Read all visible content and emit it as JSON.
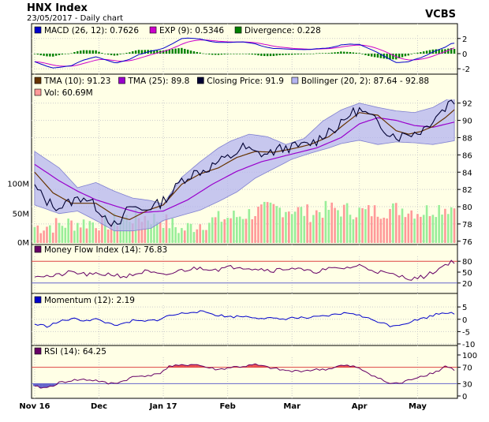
{
  "header": {
    "title": "HNX Index",
    "subtitle": "23/05/2017 - Daily chart",
    "source": "VCBS"
  },
  "colors": {
    "panel_bg": "#ffffe6",
    "macd": "#0000cc",
    "exp": "#cc00cc",
    "divergence": "#008000",
    "tma10": "#663300",
    "tma25": "#9900cc",
    "close": "#000033",
    "bollinger_fill": "#b4b4f0",
    "vol_up": "#99ee99",
    "vol_down": "#ff9999",
    "mfi_line": "#660066",
    "momentum_line": "#0000cc",
    "rsi_line": "#660066",
    "rsi_over": "#ee5555",
    "rsi_under": "#6666cc",
    "ref_line": "#dd4444"
  },
  "legends": {
    "macd": [
      {
        "swatch": "#0000cc",
        "text": "MACD (26, 12): 0.7626"
      },
      {
        "swatch": "#cc00cc",
        "text": "EXP (9): 0.5346"
      },
      {
        "swatch": "#008000",
        "text": "Divergence: 0.228"
      }
    ],
    "price": [
      {
        "swatch": "#663300",
        "text": "TMA (10): 91.23"
      },
      {
        "swatch": "#9900cc",
        "text": "TMA (25): 89.8"
      },
      {
        "swatch": "#000033",
        "text": "Closing Price: 91.9"
      },
      {
        "swatch": "#b4b4f0",
        "text": "Bollinger (20, 2): 87.64 - 92.88"
      },
      {
        "swatch": "#ff9999",
        "text": "Vol: 60.69M"
      }
    ],
    "mfi": [
      {
        "swatch": "#660066",
        "text": "Money Flow Index (14): 76.83"
      }
    ],
    "momentum": [
      {
        "swatch": "#0000cc",
        "text": "Momentum (12): 2.19"
      }
    ],
    "rsi": [
      {
        "swatch": "#660066",
        "text": "RSI (14): 64.25"
      }
    ]
  },
  "chart_data": {
    "type": "line",
    "x_labels": [
      "Nov 16",
      "Dec",
      "Jan 17",
      "Feb",
      "Mar",
      "Apr",
      "May"
    ],
    "x_label_day_index": [
      0,
      21,
      42,
      63,
      84,
      106,
      125
    ],
    "n_days": 138,
    "close_keypoints": [
      [
        0,
        82.3
      ],
      [
        4,
        80.6
      ],
      [
        8,
        79.9
      ],
      [
        12,
        80.6
      ],
      [
        16,
        81.2
      ],
      [
        20,
        80.0
      ],
      [
        24,
        78.6
      ],
      [
        27,
        77.5
      ],
      [
        31,
        80.1
      ],
      [
        35,
        79.6
      ],
      [
        38,
        80.0
      ],
      [
        41,
        80.4
      ],
      [
        45,
        81.7
      ],
      [
        48,
        83.1
      ],
      [
        52,
        83.9
      ],
      [
        56,
        84.3
      ],
      [
        60,
        85.2
      ],
      [
        64,
        85.8
      ],
      [
        68,
        86.9
      ],
      [
        72,
        86.2
      ],
      [
        76,
        86.1
      ],
      [
        80,
        86.7
      ],
      [
        84,
        86.9
      ],
      [
        88,
        87.1
      ],
      [
        92,
        87.6
      ],
      [
        96,
        88.9
      ],
      [
        99,
        89.1
      ],
      [
        103,
        90.8
      ],
      [
        106,
        91.2
      ],
      [
        110,
        90.3
      ],
      [
        113,
        89.4
      ],
      [
        116,
        88.5
      ],
      [
        119,
        88.1
      ],
      [
        122,
        88.5
      ],
      [
        125,
        88.6
      ],
      [
        128,
        89.3
      ],
      [
        131,
        90.6
      ],
      [
        134,
        91.4
      ],
      [
        136,
        92.6
      ],
      [
        137,
        91.9
      ]
    ],
    "tma10_keypoints": [
      [
        0,
        84.0
      ],
      [
        6,
        81.6
      ],
      [
        12,
        80.4
      ],
      [
        20,
        80.4
      ],
      [
        26,
        79.0
      ],
      [
        31,
        78.5
      ],
      [
        37,
        79.6
      ],
      [
        42,
        80.2
      ],
      [
        48,
        82.6
      ],
      [
        54,
        83.8
      ],
      [
        60,
        84.5
      ],
      [
        66,
        85.7
      ],
      [
        72,
        86.4
      ],
      [
        78,
        86.3
      ],
      [
        84,
        86.7
      ],
      [
        90,
        87.2
      ],
      [
        96,
        88.1
      ],
      [
        102,
        89.8
      ],
      [
        106,
        90.9
      ],
      [
        112,
        90.6
      ],
      [
        118,
        88.8
      ],
      [
        122,
        88.4
      ],
      [
        126,
        88.7
      ],
      [
        130,
        89.3
      ],
      [
        134,
        90.3
      ],
      [
        137,
        91.23
      ]
    ],
    "tma25_keypoints": [
      [
        0,
        84.9
      ],
      [
        8,
        83.0
      ],
      [
        14,
        81.8
      ],
      [
        20,
        80.8
      ],
      [
        28,
        79.9
      ],
      [
        34,
        79.3
      ],
      [
        42,
        79.5
      ],
      [
        50,
        80.8
      ],
      [
        58,
        82.6
      ],
      [
        66,
        84.1
      ],
      [
        74,
        85.2
      ],
      [
        84,
        86.1
      ],
      [
        92,
        86.8
      ],
      [
        100,
        88.0
      ],
      [
        106,
        89.6
      ],
      [
        112,
        90.3
      ],
      [
        118,
        90.0
      ],
      [
        124,
        89.4
      ],
      [
        130,
        89.2
      ],
      [
        137,
        89.8
      ]
    ],
    "bollinger_upper_keypoints": [
      [
        0,
        86.4
      ],
      [
        8,
        84.5
      ],
      [
        14,
        82.2
      ],
      [
        20,
        82.8
      ],
      [
        26,
        81.8
      ],
      [
        32,
        81.0
      ],
      [
        38,
        80.7
      ],
      [
        42,
        80.3
      ],
      [
        48,
        83.4
      ],
      [
        54,
        85.2
      ],
      [
        60,
        86.8
      ],
      [
        64,
        87.6
      ],
      [
        70,
        88.4
      ],
      [
        76,
        88.1
      ],
      [
        82,
        87.2
      ],
      [
        88,
        87.9
      ],
      [
        94,
        89.9
      ],
      [
        100,
        91.2
      ],
      [
        106,
        92.0
      ],
      [
        112,
        91.5
      ],
      [
        118,
        91.1
      ],
      [
        124,
        90.9
      ],
      [
        130,
        91.5
      ],
      [
        137,
        92.88
      ]
    ],
    "bollinger_lower_keypoints": [
      [
        0,
        80.2
      ],
      [
        8,
        79.2
      ],
      [
        14,
        79.5
      ],
      [
        20,
        78.4
      ],
      [
        26,
        77.2
      ],
      [
        32,
        77.2
      ],
      [
        38,
        77.5
      ],
      [
        42,
        78.4
      ],
      [
        48,
        79.0
      ],
      [
        54,
        79.6
      ],
      [
        60,
        80.6
      ],
      [
        66,
        81.7
      ],
      [
        72,
        83.3
      ],
      [
        78,
        84.4
      ],
      [
        84,
        85.5
      ],
      [
        90,
        86.2
      ],
      [
        96,
        86.8
      ],
      [
        100,
        87.3
      ],
      [
        106,
        87.7
      ],
      [
        112,
        87.2
      ],
      [
        118,
        87.5
      ],
      [
        124,
        87.4
      ],
      [
        130,
        87.2
      ],
      [
        137,
        87.64
      ]
    ],
    "volume_keypoints": [
      [
        0,
        27
      ],
      [
        6,
        30
      ],
      [
        12,
        33
      ],
      [
        18,
        35
      ],
      [
        24,
        34
      ],
      [
        30,
        42
      ],
      [
        36,
        44
      ],
      [
        42,
        38
      ],
      [
        48,
        22
      ],
      [
        54,
        33
      ],
      [
        60,
        40
      ],
      [
        66,
        45
      ],
      [
        72,
        52
      ],
      [
        78,
        58
      ],
      [
        84,
        57
      ],
      [
        90,
        50
      ],
      [
        96,
        57
      ],
      [
        102,
        55
      ],
      [
        108,
        52
      ],
      [
        114,
        55
      ],
      [
        120,
        58
      ],
      [
        126,
        52
      ],
      [
        132,
        60
      ],
      [
        137,
        60.69
      ]
    ],
    "mfi_keypoints": [
      [
        0,
        42
      ],
      [
        6,
        38
      ],
      [
        12,
        50
      ],
      [
        18,
        42
      ],
      [
        24,
        45
      ],
      [
        30,
        38
      ],
      [
        36,
        52
      ],
      [
        42,
        40
      ],
      [
        48,
        55
      ],
      [
        54,
        62
      ],
      [
        60,
        58
      ],
      [
        66,
        66
      ],
      [
        72,
        60
      ],
      [
        78,
        55
      ],
      [
        84,
        62
      ],
      [
        90,
        50
      ],
      [
        96,
        58
      ],
      [
        102,
        62
      ],
      [
        106,
        68
      ],
      [
        112,
        52
      ],
      [
        118,
        40
      ],
      [
        124,
        32
      ],
      [
        128,
        40
      ],
      [
        132,
        60
      ],
      [
        136,
        80
      ],
      [
        137,
        76.83
      ]
    ],
    "momentum_keypoints": [
      [
        0,
        -2.0
      ],
      [
        4,
        -2.8
      ],
      [
        8,
        -1.0
      ],
      [
        12,
        0.2
      ],
      [
        16,
        -0.4
      ],
      [
        20,
        0.0
      ],
      [
        24,
        -1.6
      ],
      [
        28,
        -2.4
      ],
      [
        32,
        -0.6
      ],
      [
        36,
        -0.9
      ],
      [
        40,
        -0.2
      ],
      [
        44,
        1.5
      ],
      [
        48,
        2.3
      ],
      [
        52,
        3.2
      ],
      [
        56,
        2.8
      ],
      [
        60,
        1.6
      ],
      [
        64,
        1.0
      ],
      [
        68,
        1.2
      ],
      [
        72,
        0.8
      ],
      [
        76,
        0.4
      ],
      [
        80,
        0.0
      ],
      [
        84,
        0.6
      ],
      [
        88,
        0.5
      ],
      [
        92,
        0.8
      ],
      [
        96,
        1.4
      ],
      [
        100,
        2.3
      ],
      [
        104,
        2.5
      ],
      [
        108,
        0.6
      ],
      [
        112,
        -0.8
      ],
      [
        116,
        -2.6
      ],
      [
        120,
        -2.0
      ],
      [
        124,
        -0.5
      ],
      [
        128,
        0.8
      ],
      [
        132,
        2.4
      ],
      [
        136,
        3.0
      ],
      [
        137,
        2.19
      ]
    ],
    "rsi_keypoints": [
      [
        0,
        22
      ],
      [
        4,
        20
      ],
      [
        8,
        32
      ],
      [
        12,
        38
      ],
      [
        16,
        40
      ],
      [
        20,
        38
      ],
      [
        24,
        30
      ],
      [
        28,
        34
      ],
      [
        32,
        46
      ],
      [
        36,
        50
      ],
      [
        40,
        52
      ],
      [
        44,
        72
      ],
      [
        48,
        74
      ],
      [
        52,
        78
      ],
      [
        56,
        70
      ],
      [
        60,
        64
      ],
      [
        64,
        70
      ],
      [
        68,
        72
      ],
      [
        72,
        76
      ],
      [
        76,
        70
      ],
      [
        80,
        64
      ],
      [
        84,
        60
      ],
      [
        88,
        62
      ],
      [
        92,
        64
      ],
      [
        96,
        66
      ],
      [
        100,
        74
      ],
      [
        104,
        72
      ],
      [
        108,
        60
      ],
      [
        112,
        44
      ],
      [
        116,
        30
      ],
      [
        120,
        32
      ],
      [
        124,
        44
      ],
      [
        128,
        52
      ],
      [
        132,
        62
      ],
      [
        134,
        73
      ],
      [
        137,
        64.25
      ]
    ],
    "panels": [
      {
        "name": "macd",
        "yticks": [
          2,
          0,
          -2
        ],
        "ylim": [
          -2.5,
          2.5
        ]
      },
      {
        "name": "price",
        "yticks": [
          92,
          90,
          88,
          86,
          84,
          82,
          80,
          78,
          76
        ],
        "ylim": [
          75.8,
          93.8
        ],
        "volume_ticks": [
          "100M",
          "50M",
          "0M"
        ],
        "volume_max": 130
      },
      {
        "name": "mfi",
        "yticks": [
          80,
          50,
          20
        ],
        "ref_lines": [
          80,
          20
        ],
        "ylim": [
          0,
          100
        ]
      },
      {
        "name": "momentum",
        "yticks": [
          5,
          0,
          -5,
          -10
        ],
        "ylim": [
          -10,
          6
        ]
      },
      {
        "name": "rsi",
        "yticks": [
          100,
          70,
          30,
          0
        ],
        "ref_lines": [
          70,
          30
        ],
        "ylim": [
          0,
          100
        ]
      }
    ]
  }
}
